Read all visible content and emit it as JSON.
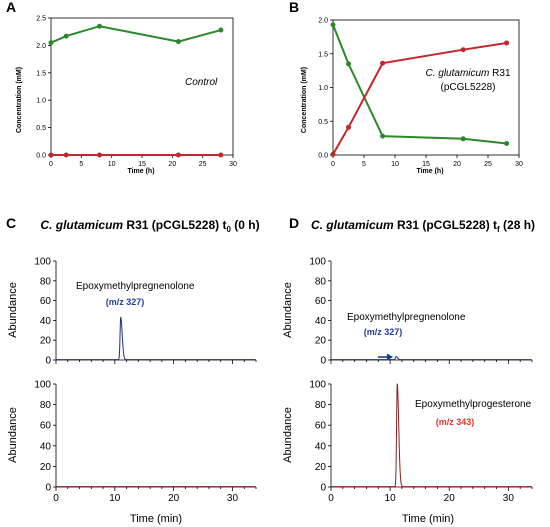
{
  "chart_data": [
    {
      "id": "A",
      "type": "line",
      "panel_label": "A",
      "annotation": "Control",
      "xlabel": "Time (h)",
      "ylabel": "Concentration (mM)",
      "xlim": [
        0,
        30
      ],
      "ylim": [
        0,
        2.5
      ],
      "xticks": [
        "0",
        "5",
        "10",
        "15",
        "20",
        "25",
        "30"
      ],
      "yticks": [
        "0.0",
        "0.5",
        "1.0",
        "1.5",
        "2.0",
        "2.5"
      ],
      "colors": [
        "#2a8a2a",
        "#c0282d"
      ],
      "series": [
        {
          "x": [
            0,
            2.5,
            8,
            21,
            28
          ],
          "y": [
            2.05,
            2.17,
            2.35,
            2.07,
            2.28
          ]
        },
        {
          "x": [
            0,
            2.5,
            8,
            21,
            28
          ],
          "y": [
            0.0,
            0.0,
            0.0,
            0.0,
            0.0
          ]
        }
      ]
    },
    {
      "id": "B",
      "type": "line",
      "panel_label": "B",
      "annotation_italic": "C. glutamicum",
      "annotation_rest": " R31",
      "annotation_line2": "(pCGL5228)",
      "xlabel": "Time (h)",
      "ylabel": "Concentration (mM)",
      "xlim": [
        0,
        30
      ],
      "ylim": [
        0,
        2.0
      ],
      "xticks": [
        "0",
        "5",
        "10",
        "15",
        "20",
        "25",
        "30"
      ],
      "yticks": [
        "0.0",
        "0.5",
        "1.0",
        "1.5",
        "2.0"
      ],
      "colors": [
        "#2a8a2a",
        "#c0282d"
      ],
      "series": [
        {
          "x": [
            0,
            2.5,
            8,
            21,
            28
          ],
          "y": [
            1.93,
            1.35,
            0.28,
            0.24,
            0.17
          ]
        },
        {
          "x": [
            0,
            2.5,
            8,
            21,
            28
          ],
          "y": [
            0.01,
            0.41,
            1.36,
            1.56,
            1.66
          ]
        }
      ]
    },
    {
      "id": "C",
      "type": "line",
      "panel_label": "C",
      "title_italic": "C. glutamicum",
      "title_rest": " R31 (pCGL5228) t",
      "title_sub": "0",
      "title_end": " (0 h)",
      "xlabel": "Time (min)",
      "ylabel": "Abundance",
      "xlim": [
        0,
        34
      ],
      "ylim": [
        0,
        100
      ],
      "xticks": [
        "0",
        "10",
        "20",
        "30"
      ],
      "yticks": [
        "0",
        "20",
        "40",
        "60",
        "80",
        "100"
      ],
      "top": {
        "color": "#1f2f7a",
        "annotation": "Epoxymethylpregnenolone",
        "annotation_mz": "(m/z 327)",
        "annotation_mz_color": "#1f3d8f",
        "peak": {
          "x": 11.0,
          "height": 43
        }
      },
      "bottom": {
        "color": "#7a1f1f",
        "peak": null
      }
    },
    {
      "id": "D",
      "type": "line",
      "panel_label": "D",
      "title_italic": "C. glutamicum",
      "title_rest": " R31 (pCGL5228) t",
      "title_sub": "f",
      "title_end": " (28 h)",
      "xlabel": "Time (min)",
      "ylabel": "Abundance",
      "xlim": [
        0,
        34
      ],
      "ylim": [
        0,
        100
      ],
      "xticks": [
        "0",
        "10",
        "20",
        "30"
      ],
      "yticks": [
        "0",
        "20",
        "40",
        "60",
        "80",
        "100"
      ],
      "top": {
        "color": "#1f2f7a",
        "annotation": "Epoxymethylpregnenolone",
        "annotation_mz": "(m/z 327)",
        "annotation_mz_color": "#1f3d8f",
        "peak": {
          "x": 11.0,
          "height": 3
        },
        "arrow_to_x": 11.0
      },
      "bottom": {
        "color": "#8a1f1f",
        "annotation": "Epoxymethylprogesterone",
        "annotation_mz": "(m/z 343)",
        "annotation_mz_color": "#e0322b",
        "peak": {
          "x": 11.2,
          "height": 100
        }
      }
    }
  ]
}
